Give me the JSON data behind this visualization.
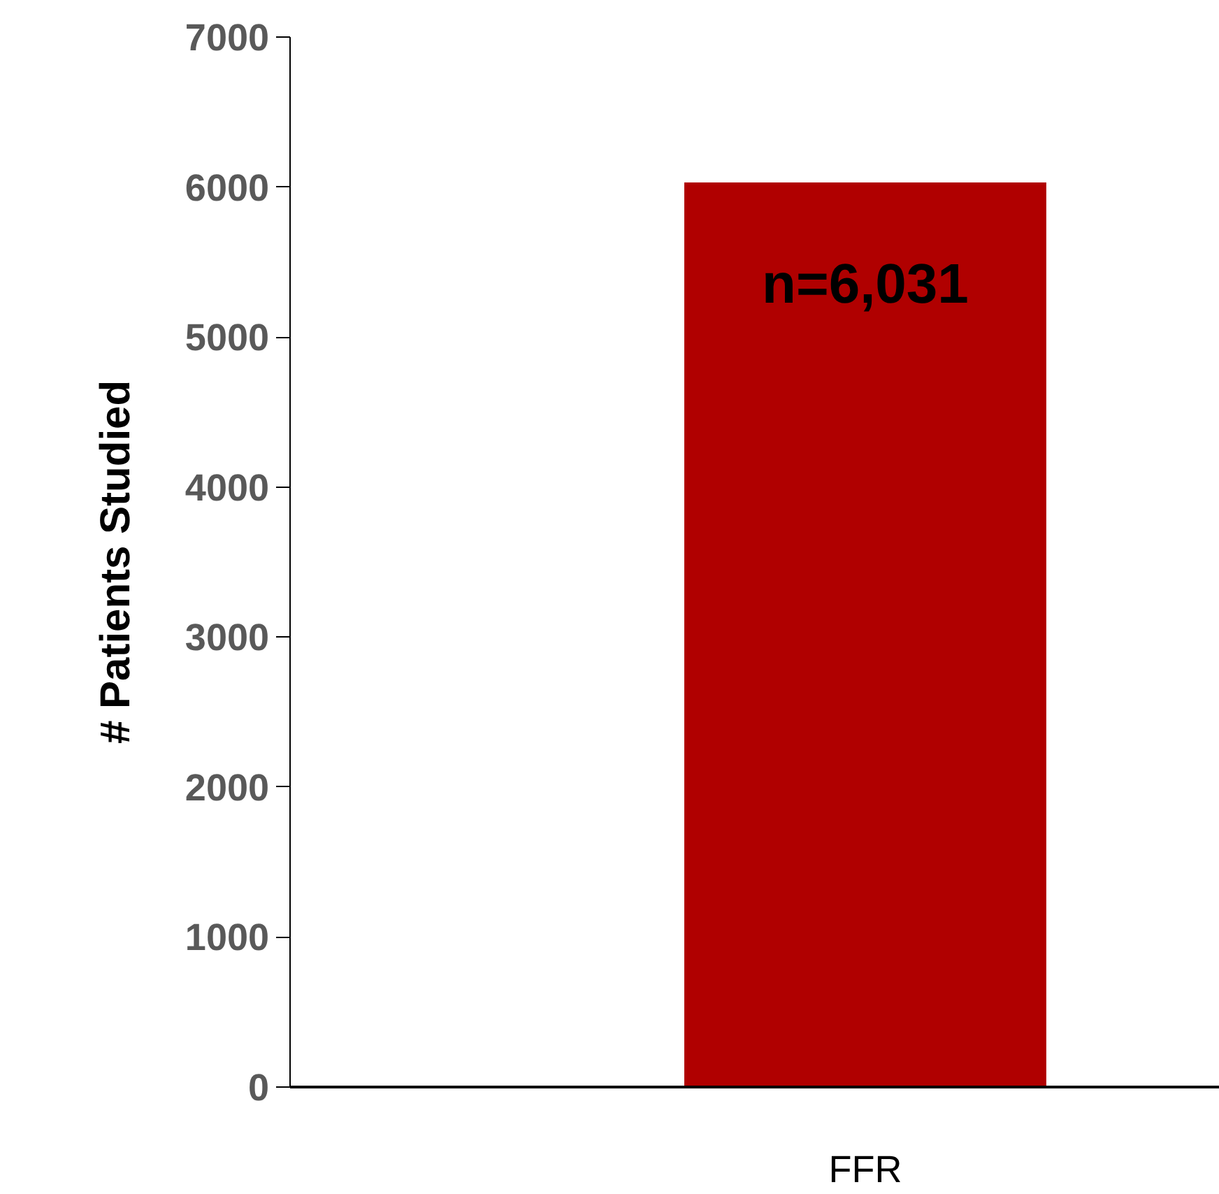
{
  "chart_data": {
    "type": "bar",
    "ylabel": "# Patients Studied",
    "categories": [
      "FFR"
    ],
    "values": [
      6031
    ],
    "value_labels": [
      "n=6,031"
    ],
    "color": "#b00000",
    "ylim": [
      0,
      7000
    ],
    "yticks": [
      0,
      1000,
      2000,
      3000,
      4000,
      5000,
      6000,
      7000
    ],
    "grid": false
  }
}
